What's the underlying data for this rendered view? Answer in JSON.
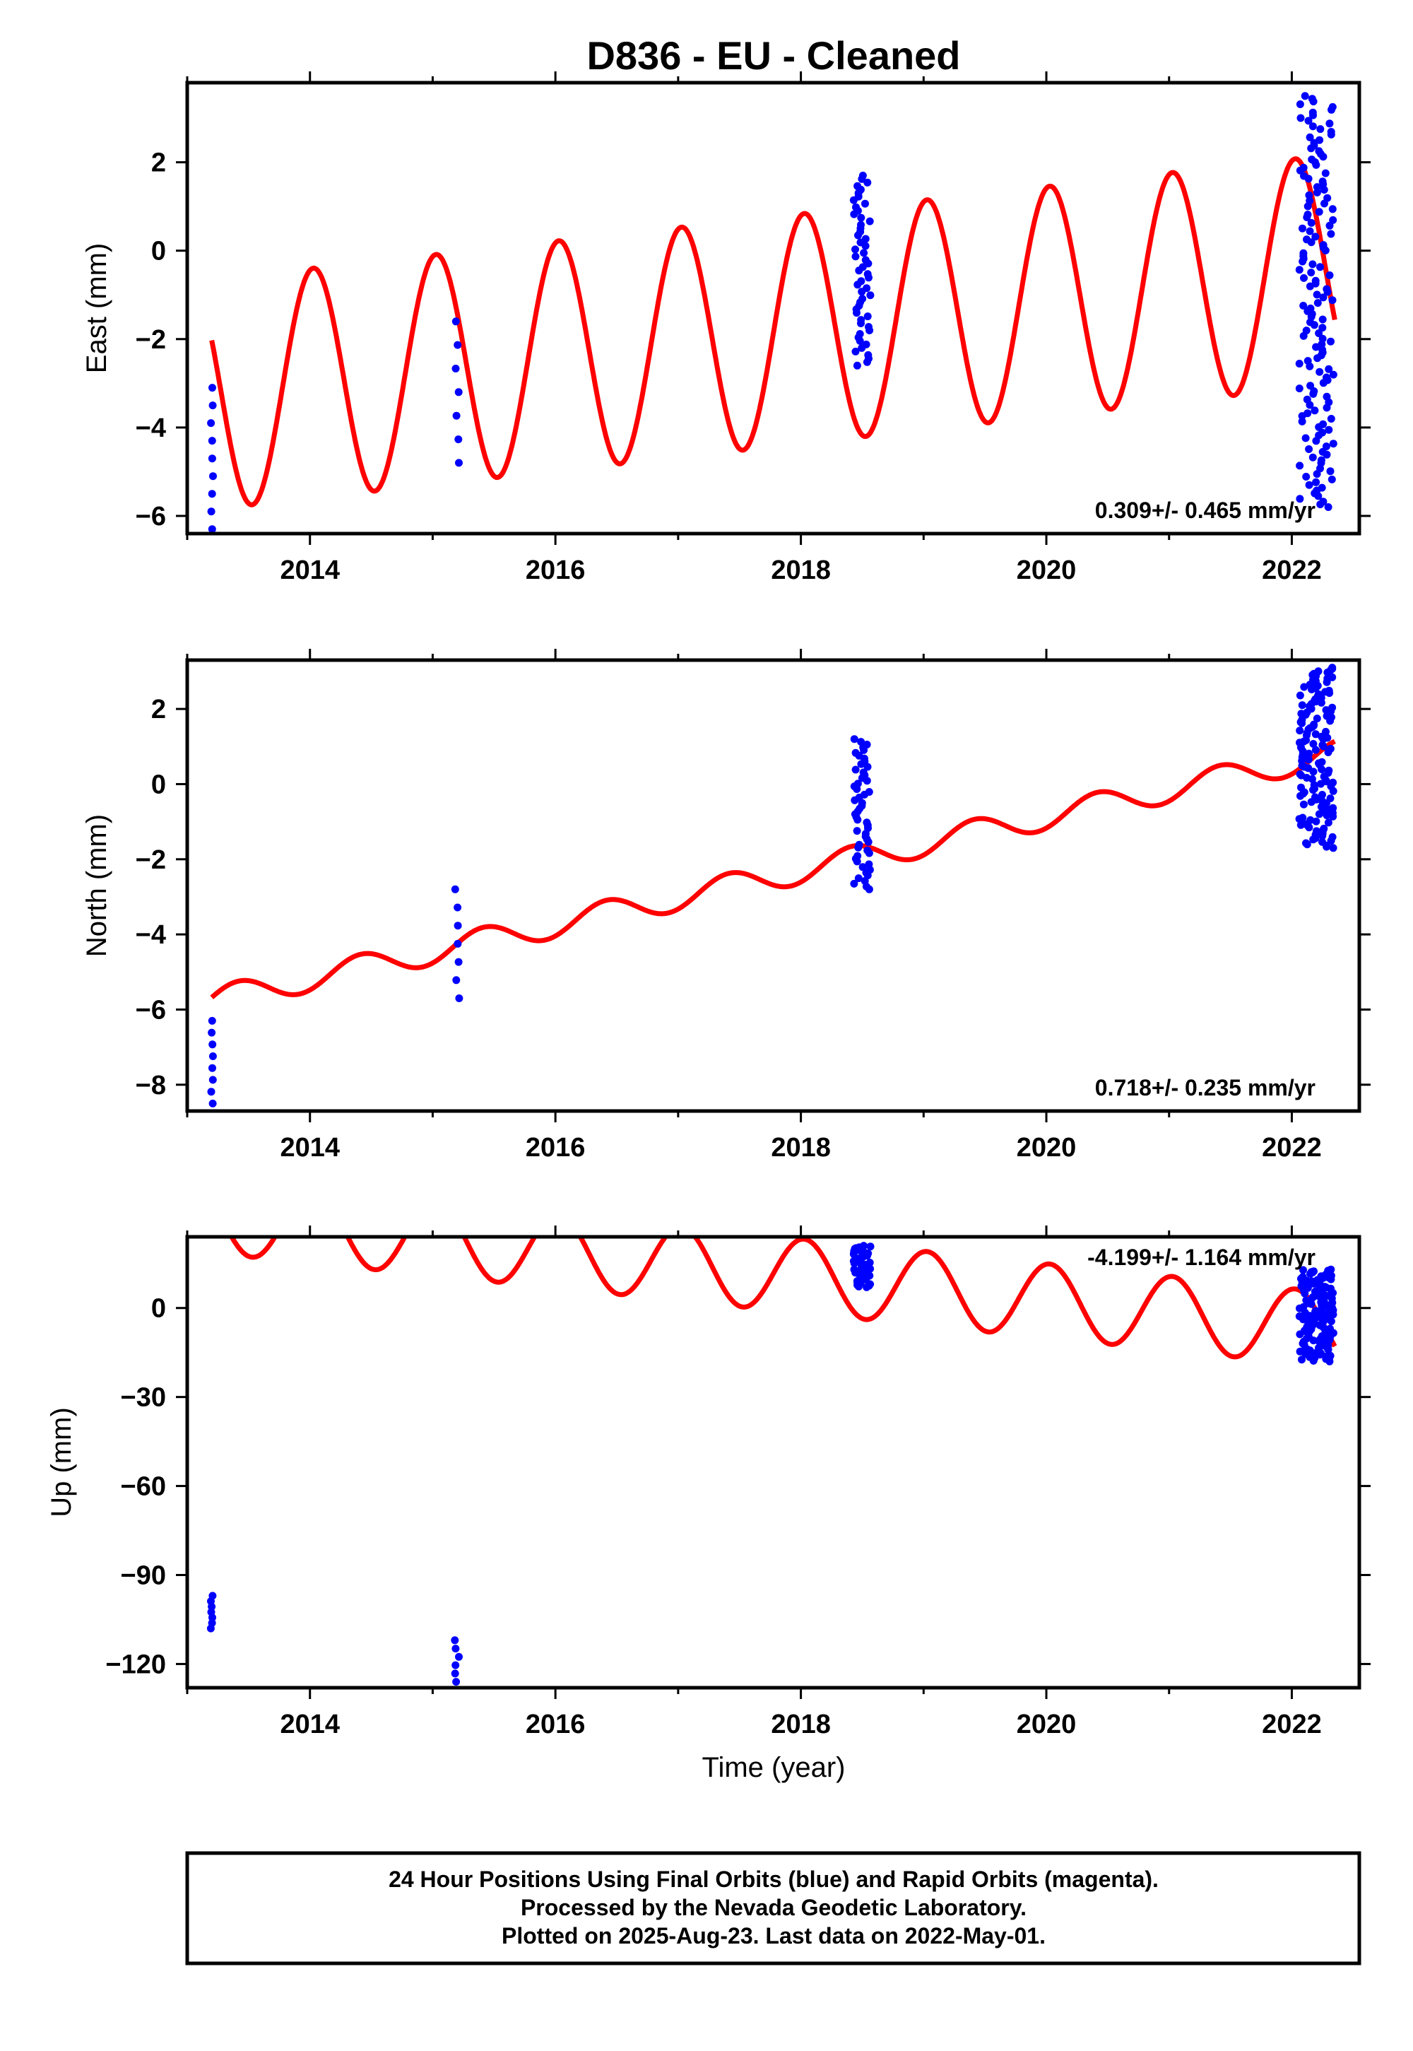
{
  "title": "D836  - EU - Cleaned",
  "x_axis_label": "Time (year)",
  "footer": [
    "24 Hour Positions Using Final Orbits (blue) and Rapid Orbits (magenta).",
    "Processed by the Nevada Geodetic Laboratory.",
    "Plotted on 2025-Aug-23. Last data on 2022-May-01."
  ],
  "colors": {
    "data": "#0000ff",
    "model": "#ff0000",
    "frame": "#000000"
  },
  "chart_data": [
    {
      "type": "scatter",
      "ylabel": "East (mm)",
      "rate_label": "0.309+/- 0.465 mm/yr",
      "xlim": [
        2013.0,
        2022.55
      ],
      "ylim": [
        -6.4,
        3.8
      ],
      "x_ticks": [
        2014,
        2016,
        2018,
        2020,
        2022
      ],
      "y_ticks": [
        -6,
        -4,
        -2,
        0,
        2
      ],
      "y_tick_labels": [
        "−6",
        "−4",
        "−2",
        "0",
        "2"
      ],
      "model": {
        "name": "fit",
        "x_start": 2013.2,
        "x_end": 2022.35,
        "offset": -3.25,
        "rate": 0.309,
        "amplitude": 2.6,
        "phase_deg": 80
      },
      "clusters": [
        {
          "center": 2013.2,
          "spread": 0.01,
          "ymin": -6.3,
          "ymax": -3.1,
          "count": 9
        },
        {
          "center": 2015.2,
          "spread": 0.02,
          "ymin": -4.8,
          "ymax": -1.6,
          "count": 7
        },
        {
          "center": 2018.5,
          "spread": 0.07,
          "ymin": -2.6,
          "ymax": 1.7,
          "count": 55
        },
        {
          "center": 2022.2,
          "spread": 0.14,
          "ymin": -5.8,
          "ymax": 3.5,
          "count": 150
        }
      ]
    },
    {
      "type": "scatter",
      "ylabel": "North (mm)",
      "rate_label": "0.718+/- 0.235 mm/yr",
      "xlim": [
        2013.0,
        2022.55
      ],
      "ylim": [
        -8.7,
        3.3
      ],
      "x_ticks": [
        2014,
        2016,
        2018,
        2020,
        2022
      ],
      "y_ticks": [
        -8,
        -6,
        -4,
        -2,
        0,
        2
      ],
      "y_tick_labels": [
        "−8",
        "−6",
        "−4",
        "−2",
        "0",
        "2"
      ],
      "model": {
        "name": "fit",
        "x_start": 2013.2,
        "x_end": 2022.35,
        "offset": -5.75,
        "rate": 0.718,
        "amplitude": 0.35,
        "phase_deg": 300
      },
      "clusters": [
        {
          "center": 2013.2,
          "spread": 0.01,
          "ymin": -8.5,
          "ymax": -6.3,
          "count": 8
        },
        {
          "center": 2015.2,
          "spread": 0.02,
          "ymin": -5.7,
          "ymax": -2.8,
          "count": 7
        },
        {
          "center": 2018.5,
          "spread": 0.07,
          "ymin": -2.8,
          "ymax": 1.2,
          "count": 55
        },
        {
          "center": 2022.2,
          "spread": 0.14,
          "ymin": -1.7,
          "ymax": 3.1,
          "count": 150
        }
      ]
    },
    {
      "type": "scatter",
      "ylabel": "Up (mm)",
      "rate_label": "-4.199+/- 1.164 mm/yr",
      "xlim": [
        2013.0,
        2022.55
      ],
      "ylim": [
        -128,
        24
      ],
      "x_ticks": [
        2014,
        2016,
        2018,
        2020,
        2022
      ],
      "y_ticks": [
        -120,
        -90,
        -60,
        -30,
        0
      ],
      "y_tick_labels": [
        "−120",
        "−90",
        "−60",
        "−30",
        "0"
      ],
      "model": {
        "name": "fit",
        "x_start": 2013.2,
        "x_end": 2022.35,
        "offset": 31,
        "rate": -4.199,
        "amplitude": 12.5,
        "phase_deg": 80
      },
      "clusters": [
        {
          "center": 2013.2,
          "spread": 0.01,
          "ymin": -108,
          "ymax": -97,
          "count": 7
        },
        {
          "center": 2015.2,
          "spread": 0.02,
          "ymin": -126,
          "ymax": -112,
          "count": 6
        },
        {
          "center": 2018.5,
          "spread": 0.07,
          "ymin": 7,
          "ymax": 21,
          "count": 55
        },
        {
          "center": 2022.2,
          "spread": 0.14,
          "ymin": -18,
          "ymax": 13,
          "count": 150
        }
      ]
    }
  ]
}
